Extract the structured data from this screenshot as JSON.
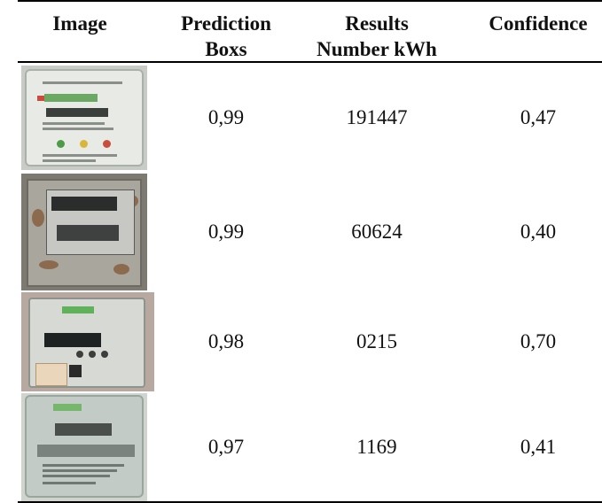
{
  "headers": {
    "image": "Image",
    "prediction_line1": "Prediction",
    "prediction_line2": "Boxs",
    "results_line1": "Results",
    "results_line2": "Number kWh",
    "confidence": "Confidence"
  },
  "rows": [
    {
      "prediction": "0,99",
      "result": "191447",
      "confidence": "0,47"
    },
    {
      "prediction": "0,99",
      "result": "60624",
      "confidence": "0,40"
    },
    {
      "prediction": "0,98",
      "result": "0215",
      "confidence": "0,70"
    },
    {
      "prediction": "0,97",
      "result": "1169",
      "confidence": "0,41"
    }
  ]
}
